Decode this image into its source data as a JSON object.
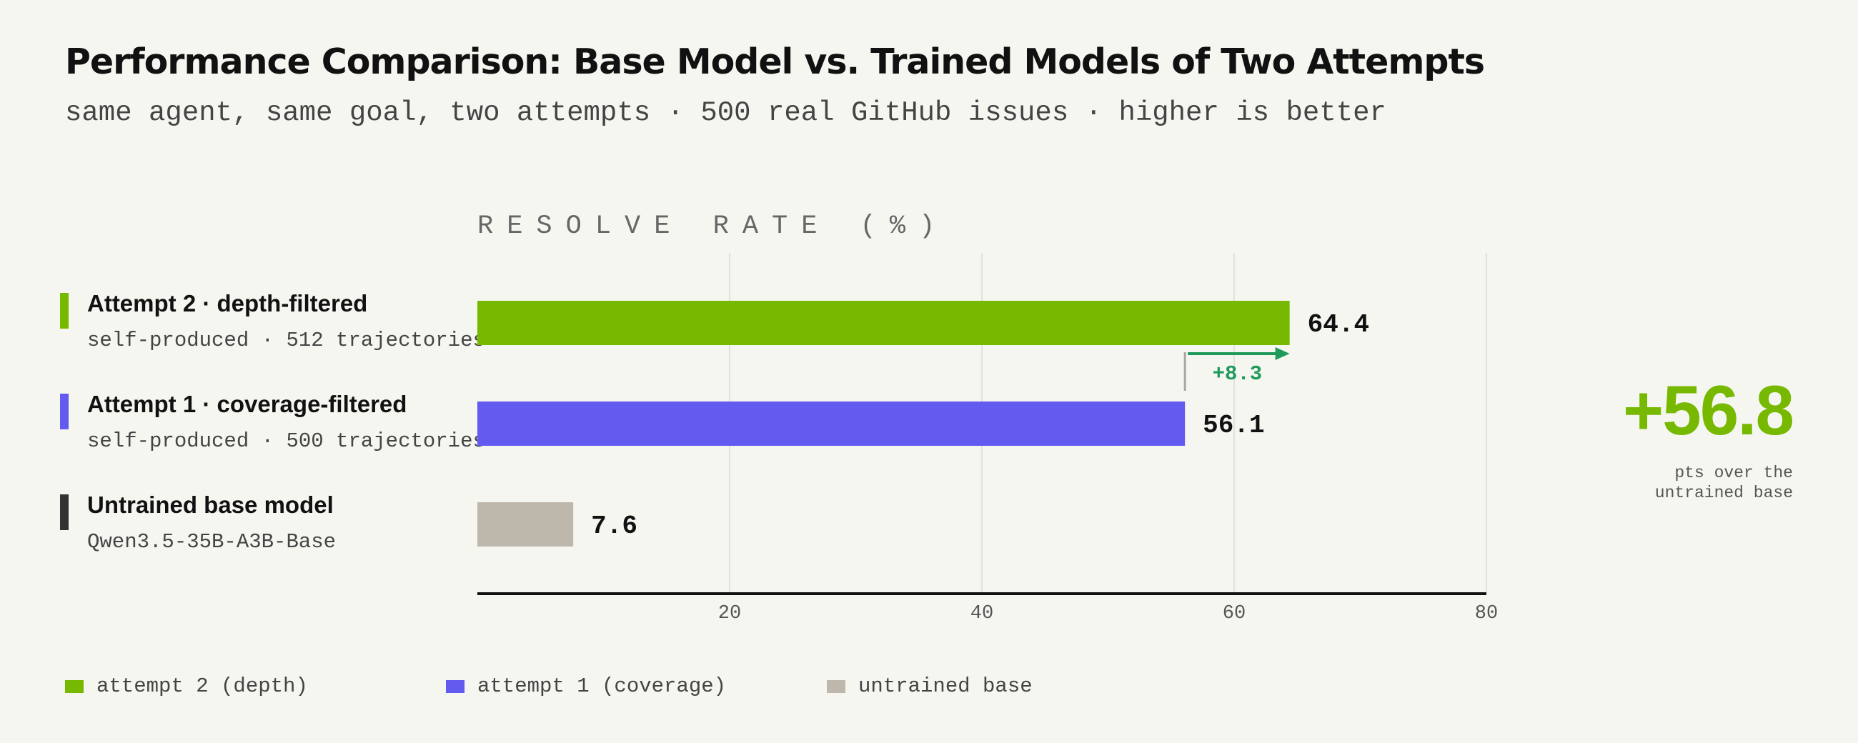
{
  "title": "Performance Comparison: Base Model vs. Trained Models of Two Attempts",
  "subtitle": "same agent, same goal, two attempts · 500 real GitHub issues · higher is better",
  "colors": {
    "attempt2": "#76b900",
    "attempt1": "#635bef",
    "base": "#bdb8ab",
    "base_accent": "#333333",
    "delta": "#1f9a5b",
    "background": "#f6f6f1"
  },
  "rows": [
    {
      "name": "Attempt 2 · depth-filtered",
      "desc": "self-produced · 512 trajectories"
    },
    {
      "name": "Attempt 1 · coverage-filtered",
      "desc": "self-produced · 500 trajectories"
    },
    {
      "name": "Untrained base model",
      "desc": "Qwen3.5-35B-A3B-Base"
    }
  ],
  "delta": {
    "label": "+8.3"
  },
  "headline": {
    "value": "+56.8",
    "caption_line1": "pts over the",
    "caption_line2": "untrained base"
  },
  "legend": [
    {
      "label": "attempt 2 (depth)"
    },
    {
      "label": "attempt 1 (coverage)"
    },
    {
      "label": "untrained base"
    }
  ],
  "chart_data": {
    "type": "bar",
    "orientation": "horizontal",
    "xlabel": "RESOLVE RATE (%)",
    "xlim": [
      0,
      80
    ],
    "xticks": [
      20,
      40,
      60,
      80
    ],
    "grid": true,
    "legend_position": "bottom",
    "categories": [
      "Attempt 2 · depth-filtered",
      "Attempt 1 · coverage-filtered",
      "Untrained base model"
    ],
    "values": [
      64.4,
      56.1,
      7.6
    ],
    "value_labels": [
      "64.4",
      "56.1",
      "7.6"
    ],
    "series_colors": [
      "#76b900",
      "#635bef",
      "#bdb8ab"
    ]
  }
}
